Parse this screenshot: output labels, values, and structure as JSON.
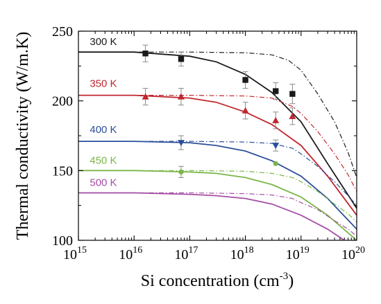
{
  "chart_data": {
    "type": "line",
    "xlabel": "Si concentration (cm",
    "xlabel_sup": "-3",
    "xlabel_close": ")",
    "ylabel": "Thermal conductivity (W/m.K)",
    "x_scale": "log",
    "xlim": [
      1000000000000000.0,
      1e+20
    ],
    "ylim": [
      100,
      250
    ],
    "x_ticks": [
      {
        "value": 1000000000000000.0,
        "base": "10",
        "exp": "15"
      },
      {
        "value": 1e+16,
        "base": "10",
        "exp": "16"
      },
      {
        "value": 1e+17,
        "base": "10",
        "exp": "17"
      },
      {
        "value": 1e+18,
        "base": "10",
        "exp": "18"
      },
      {
        "value": 1e+19,
        "base": "10",
        "exp": "19"
      },
      {
        "value": 1e+20,
        "base": "10",
        "exp": "20"
      }
    ],
    "y_ticks": [
      {
        "value": 100,
        "label": "100"
      },
      {
        "value": 150,
        "label": "150"
      },
      {
        "value": 200,
        "label": "200"
      },
      {
        "value": 250,
        "label": "250"
      }
    ],
    "grid": false,
    "legend": "inline labels left",
    "series": [
      {
        "name": "300 K",
        "color": "#1a1a1a",
        "marker": "square",
        "solid": [
          [
            1000000000000000.0,
            235
          ],
          [
            1e+16,
            235
          ],
          [
            1e+17,
            232
          ],
          [
            3e+17,
            228
          ],
          [
            1e+18,
            219
          ],
          [
            3e+18,
            206
          ],
          [
            1e+19,
            185
          ],
          [
            3e+19,
            155
          ],
          [
            1e+20,
            123
          ]
        ],
        "dashdot": [
          [
            1000000000000000.0,
            235
          ],
          [
            1e+16,
            235
          ],
          [
            1e+17,
            235
          ],
          [
            1e+18,
            234.5
          ],
          [
            3e+18,
            233
          ],
          [
            6e+18,
            229
          ],
          [
            1e+19,
            222
          ],
          [
            2e+19,
            205
          ],
          [
            4e+19,
            185
          ],
          [
            7e+19,
            163
          ],
          [
            1e+20,
            145
          ]
        ],
        "points": [
          {
            "x": 1.6e+16,
            "y": 234,
            "err": 6
          },
          {
            "x": 7e+16,
            "y": 230,
            "err": 5
          },
          {
            "x": 1e+18,
            "y": 215,
            "err": 6
          },
          {
            "x": 3.5e+18,
            "y": 207,
            "err": 6
          },
          {
            "x": 7e+18,
            "y": 205,
            "err": 7
          }
        ]
      },
      {
        "name": "350 K",
        "color": "#c0262d",
        "marker": "triangle-up",
        "solid": [
          [
            1000000000000000.0,
            204
          ],
          [
            1e+16,
            204
          ],
          [
            1e+17,
            202
          ],
          [
            3e+17,
            199
          ],
          [
            1e+18,
            192
          ],
          [
            3e+18,
            183
          ],
          [
            1e+19,
            168
          ],
          [
            3e+19,
            146
          ],
          [
            1e+20,
            118
          ]
        ],
        "dashdot": [
          [
            1000000000000000.0,
            204
          ],
          [
            1e+16,
            204
          ],
          [
            1e+17,
            204
          ],
          [
            1e+18,
            203.5
          ],
          [
            3e+18,
            202
          ],
          [
            7e+18,
            196
          ],
          [
            1e+19,
            191
          ],
          [
            2e+19,
            178
          ],
          [
            4e+19,
            162
          ],
          [
            7e+19,
            147
          ],
          [
            1e+20,
            135
          ]
        ],
        "points": [
          {
            "x": 1.6e+16,
            "y": 203,
            "err": 6
          },
          {
            "x": 7e+16,
            "y": 203,
            "err": 6
          },
          {
            "x": 1e+18,
            "y": 193,
            "err": 6
          },
          {
            "x": 3.5e+18,
            "y": 186,
            "err": 6
          },
          {
            "x": 7e+18,
            "y": 189,
            "err": 6
          }
        ]
      },
      {
        "name": "400 K",
        "color": "#2b4f9a",
        "marker": "triangle-down",
        "solid": [
          [
            1000000000000000.0,
            171
          ],
          [
            1e+16,
            171
          ],
          [
            1e+17,
            170
          ],
          [
            3e+17,
            168
          ],
          [
            1e+18,
            164
          ],
          [
            3e+18,
            157
          ],
          [
            1e+19,
            146
          ],
          [
            3e+19,
            130
          ],
          [
            1e+20,
            108
          ]
        ],
        "dashdot": [
          [
            1000000000000000.0,
            171
          ],
          [
            1e+16,
            171
          ],
          [
            1e+17,
            171
          ],
          [
            1e+18,
            170.5
          ],
          [
            3e+18,
            169.5
          ],
          [
            7e+18,
            166
          ],
          [
            1e+19,
            162
          ],
          [
            2e+19,
            153
          ],
          [
            4e+19,
            142
          ],
          [
            7e+19,
            132
          ],
          [
            1e+20,
            125
          ]
        ],
        "points": [
          {
            "x": 7e+16,
            "y": 170,
            "err": 5
          },
          {
            "x": 3.5e+18,
            "y": 168,
            "err": 4
          }
        ]
      },
      {
        "name": "450 K",
        "color": "#7ab648",
        "marker": "circle",
        "solid": [
          [
            1000000000000000.0,
            150
          ],
          [
            1e+16,
            150
          ],
          [
            1e+17,
            149
          ],
          [
            3e+17,
            148
          ],
          [
            1e+18,
            145
          ],
          [
            3e+18,
            140
          ],
          [
            1e+19,
            131
          ],
          [
            3e+19,
            118
          ],
          [
            1e+20,
            100
          ]
        ],
        "dashdot": [
          [
            1000000000000000.0,
            150
          ],
          [
            1e+16,
            150
          ],
          [
            1e+17,
            150
          ],
          [
            1e+18,
            149.5
          ],
          [
            3e+18,
            148
          ],
          [
            7e+18,
            145
          ],
          [
            1e+19,
            142
          ],
          [
            2e+19,
            135
          ],
          [
            4e+19,
            126
          ],
          [
            7e+19,
            119
          ],
          [
            1e+20,
            113
          ]
        ],
        "points": [
          {
            "x": 7e+16,
            "y": 149,
            "err": 4
          },
          {
            "x": 3.5e+18,
            "y": 155,
            "err": 0
          }
        ]
      },
      {
        "name": "500 K",
        "color": "#a54ea5",
        "marker": "none",
        "solid": [
          [
            1000000000000000.0,
            134
          ],
          [
            1e+16,
            134
          ],
          [
            1e+17,
            133
          ],
          [
            3e+17,
            132
          ],
          [
            1e+18,
            130
          ],
          [
            3e+18,
            126
          ],
          [
            1e+19,
            118
          ],
          [
            3e+19,
            108
          ],
          [
            1e+20,
            94
          ]
        ],
        "dashdot": [
          [
            1000000000000000.0,
            134
          ],
          [
            1e+16,
            134
          ],
          [
            1e+17,
            134
          ],
          [
            1e+18,
            133.5
          ],
          [
            3e+18,
            132.5
          ],
          [
            7e+18,
            130
          ],
          [
            1e+19,
            127
          ],
          [
            2e+19,
            122
          ],
          [
            4e+19,
            114
          ],
          [
            7e+19,
            108
          ],
          [
            1e+20,
            103
          ]
        ],
        "points": []
      }
    ],
    "series_labels": [
      {
        "text": "300 K",
        "color": "#1a1a1a",
        "x": 1600000000000000.0,
        "y": 240
      },
      {
        "text": "350 K",
        "color": "#c0262d",
        "x": 1600000000000000.0,
        "y": 210
      },
      {
        "text": "400 K",
        "color": "#2b4f9a",
        "x": 1600000000000000.0,
        "y": 177
      },
      {
        "text": "450 K",
        "color": "#7ab648",
        "x": 1600000000000000.0,
        "y": 155
      },
      {
        "text": "500 K",
        "color": "#a54ea5",
        "x": 1600000000000000.0,
        "y": 139
      }
    ]
  }
}
